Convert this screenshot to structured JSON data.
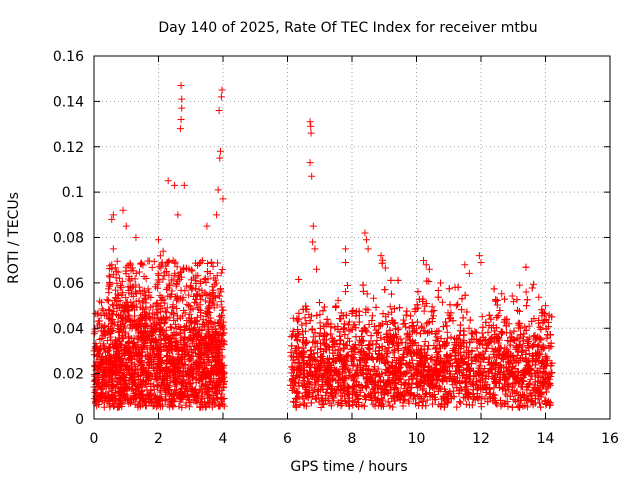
{
  "chart_data": {
    "type": "scatter",
    "title": "Day 140 of 2025, Rate Of TEC Index for receiver mtbu",
    "xlabel": "GPS time / hours",
    "ylabel": "ROTI / TECUs",
    "xlim": [
      0,
      16
    ],
    "ylim": [
      0,
      0.16
    ],
    "xticks": [
      0,
      2,
      4,
      6,
      8,
      10,
      12,
      14,
      16
    ],
    "xtick_labels": [
      "0",
      "2",
      "4",
      "6",
      "8",
      "10",
      "12",
      "14",
      "16"
    ],
    "yticks": [
      0,
      0.02,
      0.04,
      0.06,
      0.08,
      0.1,
      0.12,
      0.14,
      0.16
    ],
    "ytick_labels": [
      "0",
      "0.02",
      "0.04",
      "0.06",
      "0.08",
      "0.1",
      "0.12",
      "0.14",
      "0.16"
    ],
    "grid": true,
    "marker": "+",
    "color": "#ff0000",
    "segments": [
      {
        "x_start": 0.0,
        "x_end": 4.05,
        "baseline": 0.022,
        "spread": 0.012
      },
      {
        "x_start": 6.1,
        "x_end": 14.2,
        "baseline": 0.022,
        "spread": 0.011
      }
    ],
    "notable_points": [
      {
        "x": 0.55,
        "y": 0.068
      },
      {
        "x": 0.6,
        "y": 0.075
      },
      {
        "x": 0.55,
        "y": 0.088
      },
      {
        "x": 0.6,
        "y": 0.09
      },
      {
        "x": 0.9,
        "y": 0.092
      },
      {
        "x": 1.0,
        "y": 0.085
      },
      {
        "x": 1.3,
        "y": 0.08
      },
      {
        "x": 2.0,
        "y": 0.079
      },
      {
        "x": 2.3,
        "y": 0.105
      },
      {
        "x": 2.5,
        "y": 0.103
      },
      {
        "x": 2.6,
        "y": 0.09
      },
      {
        "x": 2.7,
        "y": 0.147
      },
      {
        "x": 2.72,
        "y": 0.141
      },
      {
        "x": 2.72,
        "y": 0.137
      },
      {
        "x": 2.7,
        "y": 0.132
      },
      {
        "x": 2.68,
        "y": 0.128
      },
      {
        "x": 2.8,
        "y": 0.103
      },
      {
        "x": 3.5,
        "y": 0.085
      },
      {
        "x": 3.8,
        "y": 0.09
      },
      {
        "x": 3.85,
        "y": 0.101
      },
      {
        "x": 3.9,
        "y": 0.115
      },
      {
        "x": 3.92,
        "y": 0.118
      },
      {
        "x": 3.88,
        "y": 0.136
      },
      {
        "x": 3.95,
        "y": 0.142
      },
      {
        "x": 3.97,
        "y": 0.145
      },
      {
        "x": 4.0,
        "y": 0.097
      },
      {
        "x": 6.7,
        "y": 0.131
      },
      {
        "x": 6.72,
        "y": 0.129
      },
      {
        "x": 6.73,
        "y": 0.126
      },
      {
        "x": 6.7,
        "y": 0.113
      },
      {
        "x": 6.75,
        "y": 0.107
      },
      {
        "x": 6.8,
        "y": 0.085
      },
      {
        "x": 6.78,
        "y": 0.078
      },
      {
        "x": 6.85,
        "y": 0.075
      },
      {
        "x": 6.9,
        "y": 0.066
      },
      {
        "x": 7.8,
        "y": 0.075
      },
      {
        "x": 7.8,
        "y": 0.069
      },
      {
        "x": 8.4,
        "y": 0.082
      },
      {
        "x": 8.45,
        "y": 0.079
      },
      {
        "x": 8.5,
        "y": 0.075
      },
      {
        "x": 8.9,
        "y": 0.072
      },
      {
        "x": 8.95,
        "y": 0.07
      },
      {
        "x": 10.3,
        "y": 0.068
      },
      {
        "x": 10.4,
        "y": 0.066
      },
      {
        "x": 11.5,
        "y": 0.068
      },
      {
        "x": 11.95,
        "y": 0.072
      },
      {
        "x": 12.0,
        "y": 0.069
      },
      {
        "x": 13.2,
        "y": 0.059
      },
      {
        "x": 13.4,
        "y": 0.056
      },
      {
        "x": 14.0,
        "y": 0.05
      }
    ]
  }
}
